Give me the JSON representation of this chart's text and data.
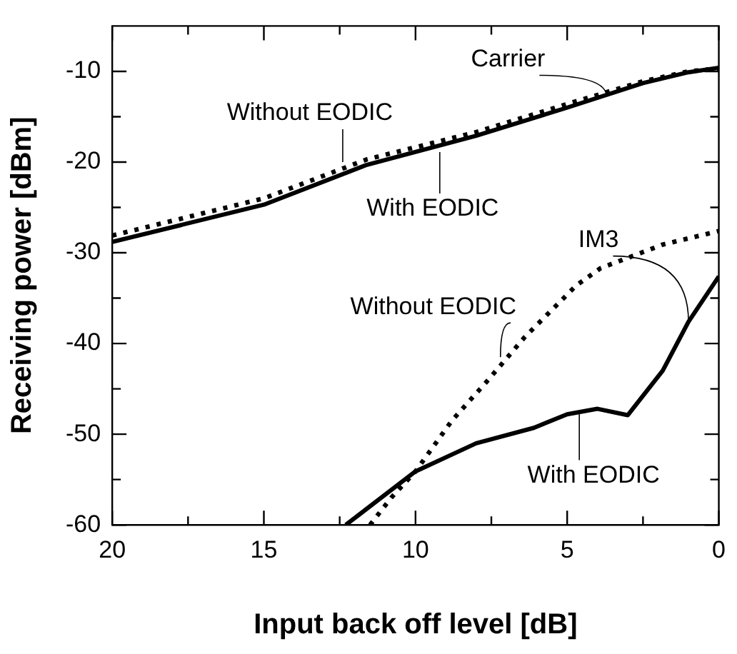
{
  "chart_data": {
    "type": "line",
    "xlabel": "Input back off level [dB]",
    "ylabel": "Receiving power [dBm]",
    "xlim": [
      20,
      0
    ],
    "ylim": [
      -60,
      -5
    ],
    "xticks": [
      20,
      {
        "value": 17.5,
        "label": null
      },
      15,
      {
        "value": 12.5,
        "label": null
      },
      10,
      {
        "value": 7.5,
        "label": null
      },
      5,
      {
        "value": 2.5,
        "label": null
      },
      0
    ],
    "yticks": [
      -60,
      {
        "value": -55,
        "label": null
      },
      -50,
      {
        "value": -45,
        "label": null
      },
      -40,
      {
        "value": -35,
        "label": null
      },
      -30,
      {
        "value": -25,
        "label": null
      },
      -20,
      {
        "value": -15,
        "label": null
      },
      -10
    ],
    "grid": false,
    "legend": false,
    "marker": "none",
    "series": [
      {
        "color": "#000000",
        "line_style": "solid",
        "x": [
          20,
          15,
          11.6,
          8,
          5,
          2.5,
          1,
          0
        ],
        "values": [
          -28.8,
          -24.7,
          -20.3,
          -17.1,
          -14.0,
          -11.3,
          -10.1,
          -9.6
        ]
      },
      {
        "color": "#000000",
        "line_style": "dotted",
        "x": [
          20,
          15,
          11.6,
          8,
          5,
          2.5,
          1,
          0
        ],
        "values": [
          -28.1,
          -24.0,
          -19.7,
          -16.7,
          -13.6,
          -11.1,
          -10.0,
          -9.7
        ]
      },
      {
        "color": "#000000",
        "line_style": "solid",
        "x": [
          12.3,
          10,
          8,
          6.1,
          5,
          4,
          3,
          1.85,
          1,
          0
        ],
        "values": [
          -60,
          -54.1,
          -51,
          -49.3,
          -47.8,
          -47.2,
          -47.9,
          -43,
          -37.6,
          -32.6
        ]
      },
      {
        "color": "#000000",
        "line_style": "dotted",
        "x": [
          11.5,
          10.8,
          10,
          8.8,
          7.6,
          6.4,
          4.7,
          3.9,
          1.85,
          0
        ],
        "values": [
          -60,
          -57,
          -54.1,
          -48.5,
          -44,
          -39.3,
          -33.6,
          -31.7,
          -29.1,
          -27.6
        ]
      }
    ],
    "annotations": [
      {
        "text": "Carrier",
        "x": 3.7,
        "y": -12.8
      },
      {
        "text": "Without EODIC",
        "x": 12.4,
        "y": -20
      },
      {
        "text": "With EODIC",
        "x": 9.2,
        "y": -18.9
      },
      {
        "text": "IM3",
        "x": 1.0,
        "y": -37.6
      },
      {
        "text": "Without EODIC",
        "x": 7.2,
        "y": -41.5
      },
      {
        "text": "With EODIC",
        "x": 4.6,
        "y": -47.5
      }
    ]
  }
}
